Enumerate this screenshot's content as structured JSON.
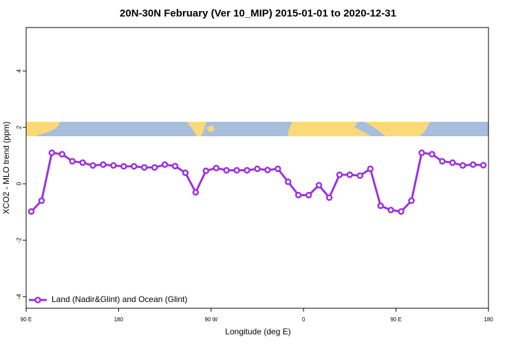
{
  "chart_data": {
    "type": "line",
    "title": "20N-30N February (Ver 10_MIP)   2015-01-01 to 2020-12-31",
    "x_label": "Longitude (deg E)",
    "y_label": "XCO2 - MLO trend (ppm)",
    "x": [
      95,
      105,
      115,
      125,
      135,
      145,
      155,
      165,
      175,
      185,
      195,
      205,
      215,
      225,
      235,
      245,
      255,
      265,
      275,
      285,
      295,
      305,
      315,
      325,
      335,
      345,
      355,
      365,
      375,
      385,
      395,
      405,
      415,
      425,
      435,
      445,
      455,
      465,
      475,
      485,
      495,
      505,
      515,
      525,
      535
    ],
    "series": [
      {
        "name": "Land (Nadir&Glint) and Ocean (Glint)",
        "color": "#9b30e0",
        "values": [
          -0.98,
          -0.6,
          1.1,
          1.05,
          0.8,
          0.75,
          0.65,
          0.68,
          0.65,
          0.62,
          0.62,
          0.58,
          0.58,
          0.68,
          0.63,
          0.39,
          -0.3,
          0.46,
          0.56,
          0.48,
          0.48,
          0.48,
          0.53,
          0.49,
          0.53,
          0.07,
          -0.4,
          -0.4,
          -0.05,
          -0.49,
          0.32,
          0.32,
          0.29,
          0.53,
          -0.78,
          -0.93,
          -0.98,
          -0.6,
          1.1,
          1.05,
          0.8,
          0.75,
          0.65,
          0.68,
          0.66
        ]
      }
    ],
    "xlim": [
      90,
      540
    ],
    "xticks": [
      {
        "value": 90,
        "label": "90 E"
      },
      180,
      {
        "value": 270,
        "label": "90 W"
      },
      {
        "value": 360,
        "label": "0"
      },
      {
        "value": 450,
        "label": "90 E"
      },
      {
        "value": 540,
        "label": "180"
      }
    ],
    "ylim": [
      -4.41,
      5.54
    ],
    "yticks": [
      -4,
      -2,
      0,
      2,
      4
    ],
    "legend": "bottom-left"
  }
}
